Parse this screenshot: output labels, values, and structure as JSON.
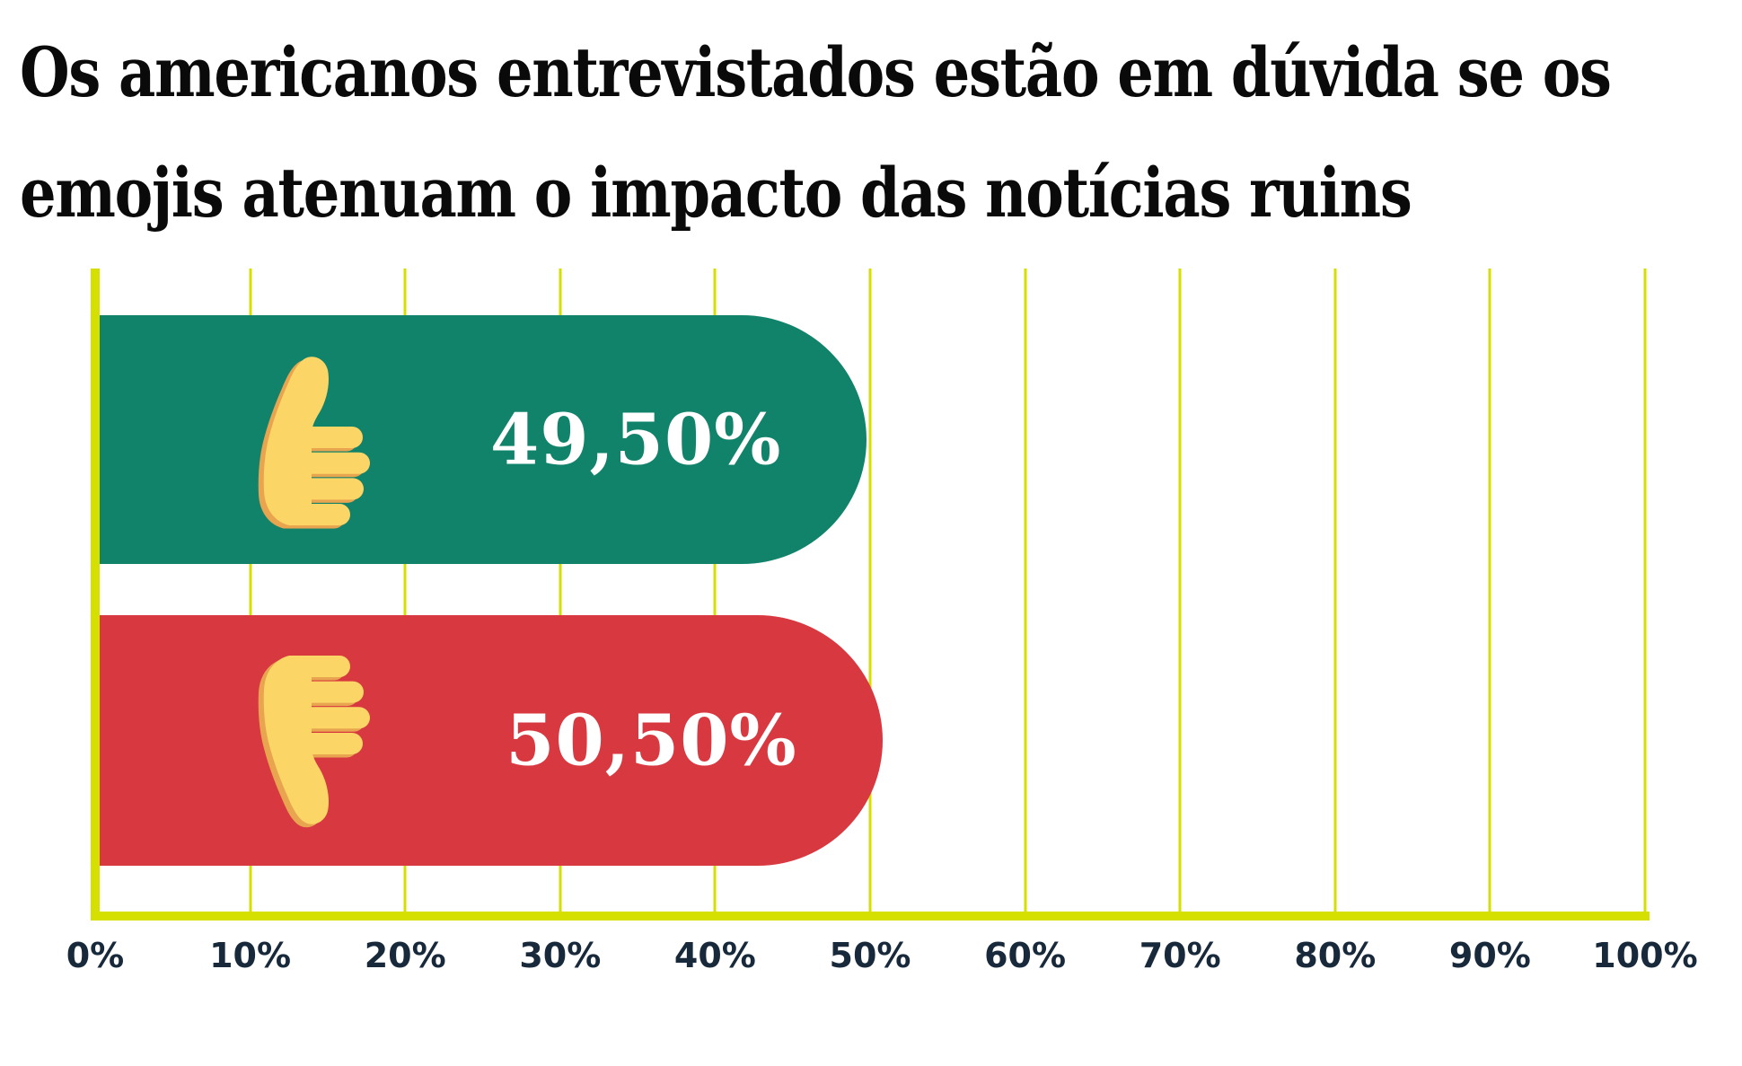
{
  "title": {
    "line1": "Os americanos entrevistados estão em dúvida se os",
    "line2": "emojis atenuam o impacto das notícias ruins"
  },
  "chart_data": {
    "type": "bar",
    "orientation": "horizontal",
    "title": "Os americanos entrevistados estão em dúvida se os emojis atenuam o impacto das notícias ruins",
    "categories": [
      "thumbs-up",
      "thumbs-down"
    ],
    "values": [
      49.5,
      50.5
    ],
    "value_labels": [
      "49,50%",
      "50,50%"
    ],
    "bar_colors": [
      "#12836B",
      "#D8383F"
    ],
    "x_ticks": [
      "0%",
      "10%",
      "20%",
      "30%",
      "40%",
      "50%",
      "60%",
      "70%",
      "80%",
      "90%",
      "100%"
    ],
    "xlim": [
      0,
      100
    ],
    "grid": "vertical",
    "legend": "none",
    "colors": {
      "grid_color": "#D5DF00",
      "axis_color": "#D5DF00",
      "tick_label_color": "#17293A",
      "value_label_color": "#FFFFFF",
      "title_color": "#0A0A0A",
      "background": "#FFFFFF",
      "emoji_yellow": "#FBD565",
      "emoji_orange": "#E9A44F"
    }
  }
}
